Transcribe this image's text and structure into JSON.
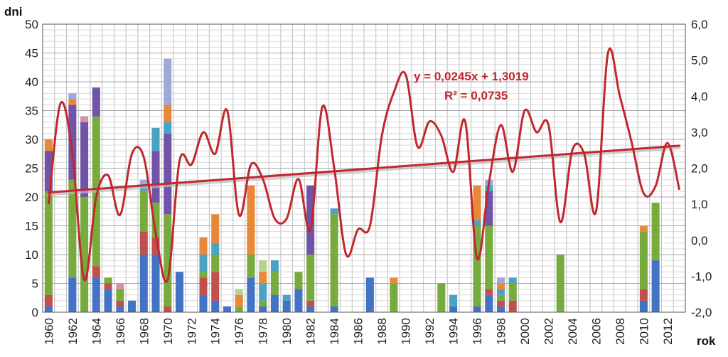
{
  "chart_data": {
    "type": "bar",
    "subtype": "stacked bar with secondary smoothed line and linear trendline",
    "ylabel": "dni",
    "xlabel": "rok",
    "ylim": [
      0,
      50
    ],
    "y_ticks": [
      "0",
      "5",
      "10",
      "15",
      "20",
      "25",
      "30",
      "35",
      "40",
      "45",
      "50"
    ],
    "y2lim": [
      -2.0,
      6.0
    ],
    "y2_ticks": [
      "-2,0",
      "-1,0",
      "0,0",
      "1,0",
      "2,0",
      "3,0",
      "4,0",
      "5,0",
      "6,0"
    ],
    "x_ticks": [
      "1960",
      "1962",
      "1964",
      "1966",
      "1968",
      "1970",
      "1972",
      "1974",
      "1976",
      "1978",
      "1980",
      "1982",
      "1984",
      "1986",
      "1988",
      "1990",
      "1992",
      "1994",
      "1996",
      "1998",
      "2000",
      "2002",
      "2004",
      "2006",
      "2008",
      "2010",
      "2012"
    ],
    "years": [
      1960,
      1961,
      1962,
      1963,
      1964,
      1965,
      1966,
      1967,
      1968,
      1969,
      1970,
      1971,
      1972,
      1973,
      1974,
      1975,
      1976,
      1977,
      1978,
      1979,
      1980,
      1981,
      1982,
      1983,
      1984,
      1985,
      1986,
      1987,
      1988,
      1989,
      1990,
      1991,
      1992,
      1993,
      1994,
      1995,
      1996,
      1997,
      1998,
      1999,
      2000,
      2001,
      2002,
      2003,
      2004,
      2005,
      2006,
      2007,
      2008,
      2009,
      2010,
      2011,
      2012,
      2013
    ],
    "series": [
      {
        "name": "blue",
        "color": "#4472c4",
        "values": [
          1,
          0,
          6,
          0,
          6,
          4,
          1,
          2,
          10,
          10,
          0,
          7,
          0,
          3,
          2,
          1,
          0,
          6,
          1,
          3,
          2,
          4,
          1,
          0,
          1,
          0,
          0,
          6,
          0,
          0,
          0,
          0,
          0,
          0,
          1,
          0,
          1,
          3,
          1,
          0,
          0,
          0,
          0,
          0,
          0,
          0,
          0,
          0,
          0,
          0,
          2,
          9,
          0,
          0
        ]
      },
      {
        "name": "red",
        "color": "#c0504d",
        "values": [
          2,
          0,
          0,
          0,
          2,
          1,
          1,
          0,
          4,
          3,
          1,
          0,
          0,
          3,
          5,
          0,
          0,
          0,
          0,
          0,
          0,
          0,
          1,
          0,
          0,
          0,
          0,
          0,
          0,
          0,
          0,
          0,
          0,
          0,
          0,
          0,
          0,
          1,
          1,
          2,
          0,
          0,
          0,
          0,
          0,
          0,
          0,
          0,
          0,
          0,
          2,
          0,
          0,
          0
        ]
      },
      {
        "name": "green",
        "color": "#77ab3d",
        "values": [
          18,
          0,
          17,
          20,
          26,
          1,
          2,
          0,
          7,
          6,
          16,
          0,
          0,
          1,
          3,
          0,
          1,
          4,
          1,
          4,
          0,
          3,
          8,
          0,
          16,
          0,
          0,
          0,
          0,
          5,
          0,
          0,
          0,
          5,
          0,
          0,
          14,
          11,
          1,
          3,
          0,
          0,
          0,
          10,
          0,
          0,
          0,
          0,
          0,
          0,
          10,
          10,
          0,
          0
        ]
      },
      {
        "name": "purple",
        "color": "#7153a8",
        "values": [
          7,
          0,
          13,
          13,
          5,
          0,
          0,
          0,
          0,
          9,
          14,
          0,
          0,
          0,
          0,
          0,
          0,
          0,
          0,
          0,
          0,
          0,
          12,
          0,
          0,
          0,
          0,
          0,
          0,
          0,
          0,
          0,
          0,
          0,
          0,
          0,
          0,
          6,
          0,
          0,
          0,
          0,
          0,
          0,
          0,
          0,
          0,
          0,
          0,
          0,
          0,
          0,
          0,
          0
        ]
      },
      {
        "name": "teal",
        "color": "#4ba3c3",
        "values": [
          0,
          0,
          0,
          0,
          0,
          0,
          0,
          0,
          1,
          4,
          2,
          0,
          0,
          3,
          2,
          0,
          0,
          0,
          3,
          2,
          1,
          0,
          0,
          0,
          1,
          0,
          0,
          0,
          0,
          0,
          0,
          0,
          0,
          0,
          2,
          0,
          1,
          1,
          1,
          1,
          0,
          0,
          0,
          0,
          0,
          0,
          0,
          0,
          0,
          0,
          0,
          0,
          0,
          0
        ]
      },
      {
        "name": "orange",
        "color": "#e8893a",
        "values": [
          2,
          0,
          1,
          0,
          0,
          0,
          0,
          0,
          0,
          0,
          3,
          0,
          0,
          3,
          5,
          0,
          2,
          12,
          2,
          0,
          0,
          0,
          0,
          0,
          0,
          0,
          0,
          0,
          0,
          1,
          0,
          0,
          0,
          0,
          0,
          0,
          6,
          0,
          1,
          0,
          0,
          0,
          0,
          0,
          0,
          0,
          0,
          0,
          0,
          0,
          1,
          0,
          0,
          0
        ]
      },
      {
        "name": "lavender",
        "color": "#9fa8d8",
        "values": [
          0,
          0,
          1,
          0,
          0,
          0,
          0,
          0,
          1,
          0,
          8,
          0,
          0,
          0,
          0,
          0,
          0,
          0,
          0,
          0,
          0,
          0,
          0,
          0,
          0,
          0,
          0,
          0,
          0,
          0,
          0,
          0,
          0,
          0,
          0,
          0,
          0,
          1,
          1,
          0,
          0,
          0,
          0,
          0,
          0,
          0,
          0,
          0,
          0,
          0,
          0,
          0,
          0,
          0
        ]
      },
      {
        "name": "pink",
        "color": "#dc8ea3",
        "values": [
          0,
          0,
          0,
          1,
          0,
          0,
          1,
          0,
          0,
          0,
          0,
          0,
          0,
          0,
          0,
          0,
          0,
          0,
          0,
          0,
          0,
          0,
          0,
          0,
          0,
          0,
          0,
          0,
          0,
          0,
          0,
          0,
          0,
          0,
          0,
          0,
          0,
          0,
          0,
          0,
          0,
          0,
          0,
          0,
          0,
          0,
          0,
          0,
          0,
          0,
          0,
          0,
          0,
          0
        ]
      },
      {
        "name": "light green",
        "color": "#b6d58a",
        "values": [
          0,
          0,
          0,
          0,
          0,
          0,
          0,
          0,
          0,
          0,
          0,
          0,
          0,
          0,
          0,
          0,
          1,
          0,
          2,
          0,
          0,
          0,
          0,
          0,
          0,
          0,
          0,
          0,
          0,
          0,
          0,
          0,
          0,
          0,
          0,
          0,
          0,
          0,
          0,
          0,
          0,
          0,
          0,
          0,
          0,
          0,
          0,
          0,
          0,
          0,
          0,
          0,
          0,
          0
        ]
      }
    ],
    "line_series": {
      "name": "right axis index",
      "color": "#c0282d",
      "axis": "right",
      "values": [
        1.0,
        3.8,
        2.4,
        -1.1,
        1.2,
        1.8,
        0.7,
        2.4,
        2.3,
        0.2,
        -1.1,
        2.2,
        2.1,
        3.0,
        2.4,
        3.6,
        0.7,
        2.1,
        1.7,
        0.6,
        0.6,
        1.7,
        0.3,
        3.7,
        2.0,
        -0.4,
        0.3,
        0.4,
        2.9,
        4.1,
        4.6,
        2.6,
        3.3,
        2.9,
        1.9,
        3.3,
        -0.5,
        1.6,
        3.2,
        1.9,
        3.6,
        3.0,
        3.2,
        0.5,
        2.5,
        2.4,
        0.8,
        5.2,
        4.0,
        2.7,
        1.3,
        1.5,
        2.7,
        1.4
      ]
    },
    "trendline": {
      "color": "#c0282d",
      "slope": 0.0245,
      "intercept": 1.3019,
      "equation": "y = 0,0245x + 1,3019",
      "r_squared": "R² = 0,0735"
    },
    "grid": true,
    "legend": "none"
  }
}
